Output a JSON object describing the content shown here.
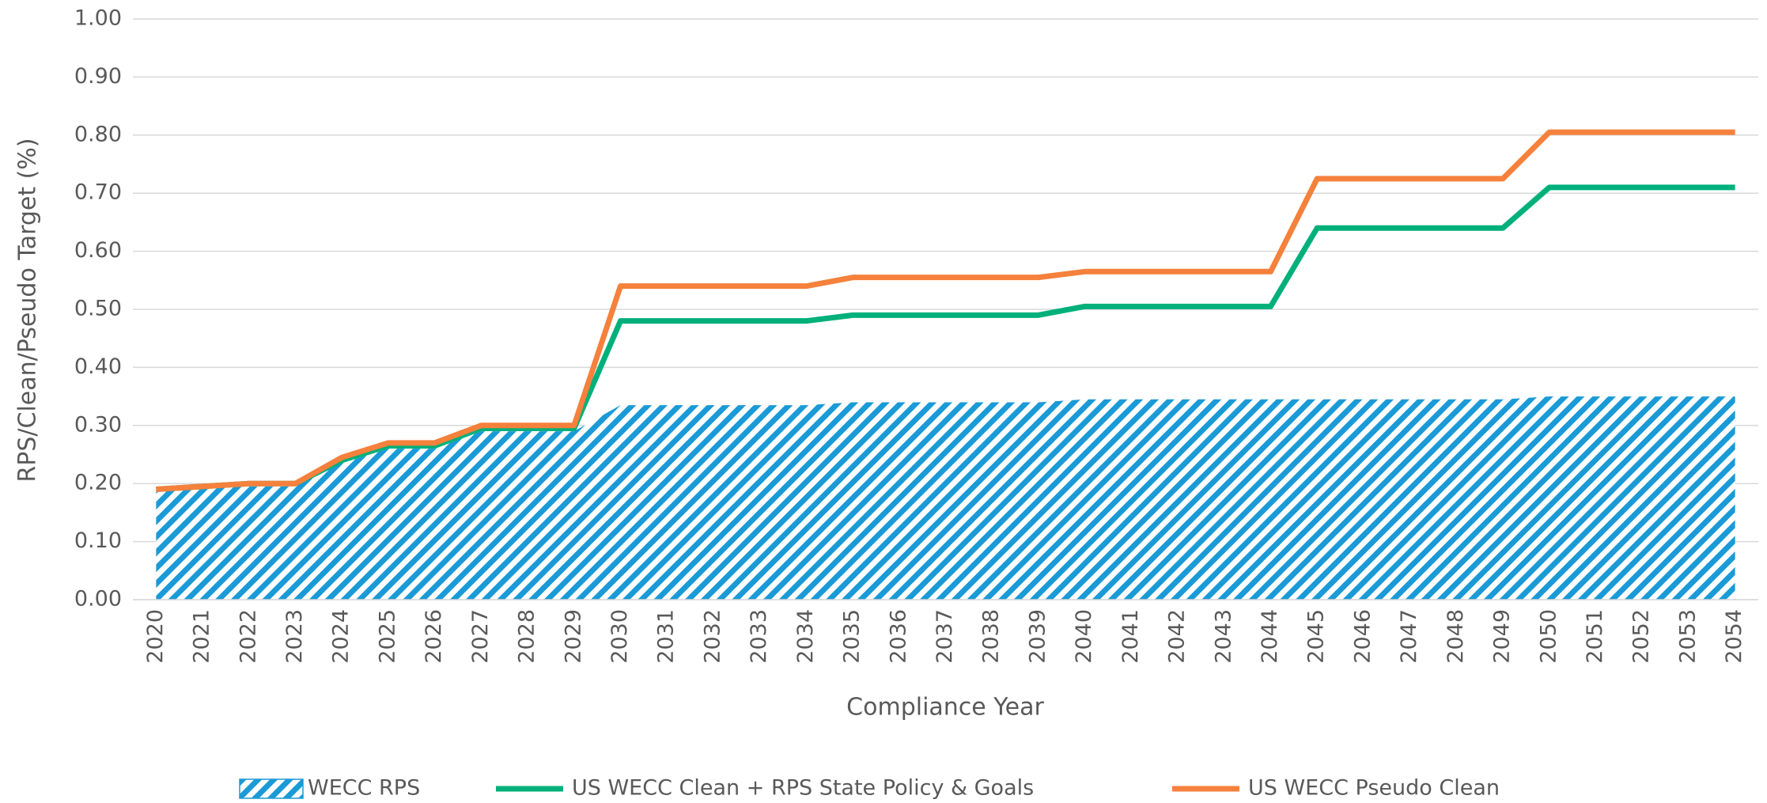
{
  "chart_data": {
    "type": "line",
    "xlabel": "Compliance Year",
    "ylabel": "RPS/Clean/Pseudo Target (%)",
    "categories": [
      "2020",
      "2021",
      "2022",
      "2023",
      "2024",
      "2025",
      "2026",
      "2027",
      "2028",
      "2029",
      "2030",
      "2031",
      "2032",
      "2033",
      "2034",
      "2035",
      "2036",
      "2037",
      "2038",
      "2039",
      "2040",
      "2041",
      "2042",
      "2043",
      "2044",
      "2045",
      "2046",
      "2047",
      "2048",
      "2049",
      "2050",
      "2051",
      "2052",
      "2053",
      "2054"
    ],
    "series": [
      {
        "name": "WECC RPS",
        "type": "area",
        "color": "#1a9ad6",
        "values": [
          0.19,
          0.195,
          0.195,
          0.195,
          0.235,
          0.26,
          0.26,
          0.29,
          0.29,
          0.29,
          0.335,
          0.335,
          0.335,
          0.335,
          0.335,
          0.34,
          0.34,
          0.34,
          0.34,
          0.34,
          0.345,
          0.345,
          0.345,
          0.345,
          0.345,
          0.345,
          0.345,
          0.345,
          0.345,
          0.345,
          0.35,
          0.35,
          0.35,
          0.35,
          0.35
        ]
      },
      {
        "name": "US WECC Clean + RPS State Policy & Goals",
        "type": "line",
        "color": "#00b07a",
        "values": [
          0.19,
          0.195,
          0.2,
          0.2,
          0.24,
          0.265,
          0.265,
          0.295,
          0.295,
          0.295,
          0.48,
          0.48,
          0.48,
          0.48,
          0.48,
          0.49,
          0.49,
          0.49,
          0.49,
          0.49,
          0.505,
          0.505,
          0.505,
          0.505,
          0.505,
          0.64,
          0.64,
          0.64,
          0.64,
          0.64,
          0.71,
          0.71,
          0.71,
          0.71,
          0.71
        ]
      },
      {
        "name": "US WECC Pseudo Clean",
        "type": "line",
        "color": "#f5813c",
        "values": [
          0.19,
          0.195,
          0.2,
          0.2,
          0.245,
          0.27,
          0.27,
          0.3,
          0.3,
          0.3,
          0.54,
          0.54,
          0.54,
          0.54,
          0.54,
          0.555,
          0.555,
          0.555,
          0.555,
          0.555,
          0.565,
          0.565,
          0.565,
          0.565,
          0.565,
          0.725,
          0.725,
          0.725,
          0.725,
          0.725,
          0.805,
          0.805,
          0.805,
          0.805,
          0.805
        ]
      }
    ],
    "ylim": [
      0,
      1
    ],
    "yticks": [
      {
        "value": 0,
        "label": "0.00"
      },
      {
        "value": 0.1,
        "label": "0.10"
      },
      {
        "value": 0.2,
        "label": "0.20"
      },
      {
        "value": 0.3,
        "label": "0.30"
      },
      {
        "value": 0.4,
        "label": "0.40"
      },
      {
        "value": 0.5,
        "label": "0.50"
      },
      {
        "value": 0.6,
        "label": "0.60"
      },
      {
        "value": 0.7,
        "label": "0.70"
      },
      {
        "value": 0.8,
        "label": "0.80"
      },
      {
        "value": 0.9,
        "label": "0.90"
      },
      {
        "value": 1,
        "label": "1.00"
      }
    ],
    "grid": true,
    "legend": "bottom"
  }
}
